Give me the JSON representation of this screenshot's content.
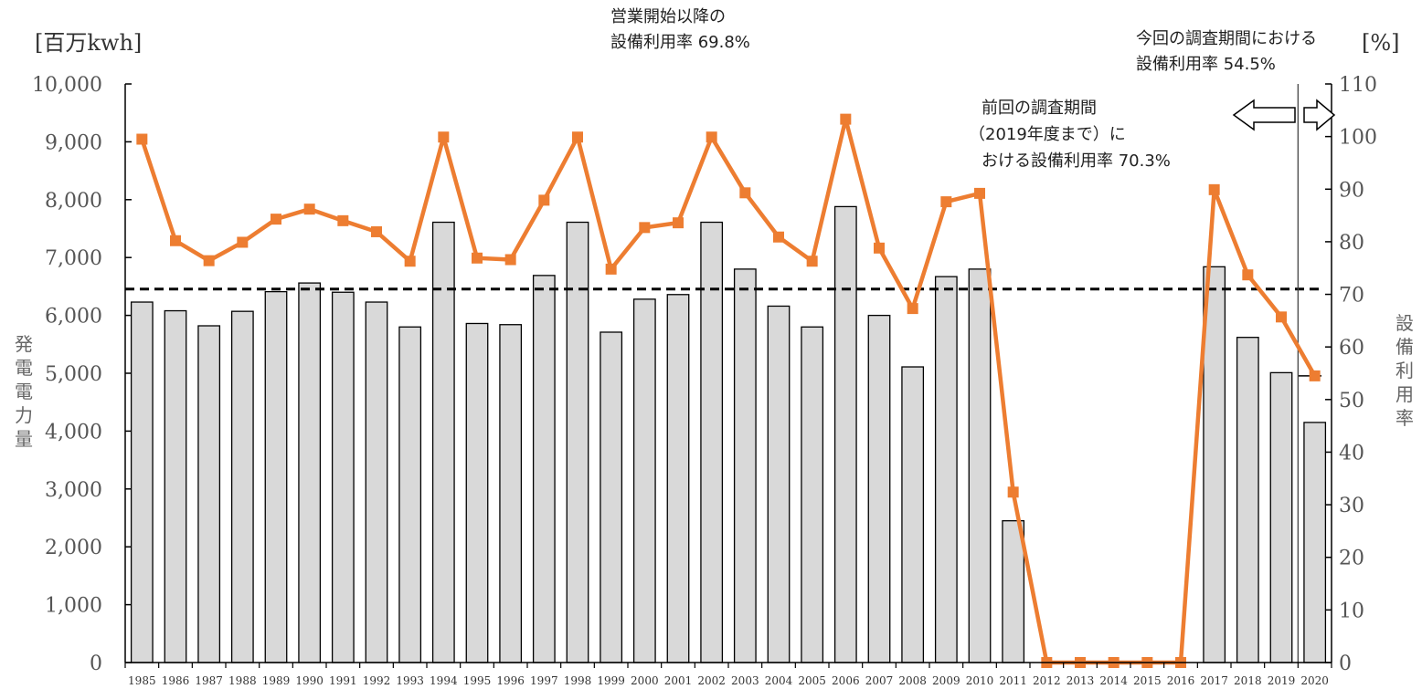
{
  "chart_data": {
    "type": "bar",
    "categories": [
      "1985",
      "1986",
      "1987",
      "1988",
      "1989",
      "1990",
      "1991",
      "1992",
      "1993",
      "1994",
      "1995",
      "1996",
      "1997",
      "1998",
      "1999",
      "2000",
      "2001",
      "2002",
      "2003",
      "2004",
      "2005",
      "2006",
      "2007",
      "2008",
      "2009",
      "2010",
      "2011",
      "2012",
      "2013",
      "2014",
      "2015",
      "2016",
      "2017",
      "2018",
      "2019",
      "2020"
    ],
    "series": [
      {
        "kind": "bar",
        "axis": "left",
        "color": "#d9d9d9",
        "values": [
          6230,
          6080,
          5820,
          6070,
          6410,
          6560,
          6400,
          6230,
          5800,
          7610,
          5860,
          5840,
          6690,
          7610,
          5710,
          6280,
          6360,
          7610,
          6800,
          6160,
          5800,
          7880,
          6000,
          5110,
          6670,
          6800,
          2450,
          0,
          0,
          0,
          0,
          0,
          6840,
          5620,
          5010,
          4150
        ]
      },
      {
        "kind": "line",
        "axis": "right",
        "color": "#ed7d31",
        "values": [
          99.5,
          80.2,
          76.4,
          79.9,
          84.3,
          86.2,
          84.0,
          81.9,
          76.3,
          99.9,
          76.9,
          76.6,
          87.9,
          99.9,
          74.8,
          82.7,
          83.6,
          99.9,
          89.3,
          80.9,
          76.3,
          103.3,
          78.8,
          67.3,
          87.6,
          89.2,
          32.4,
          0,
          0,
          0,
          0,
          0,
          89.9,
          73.7,
          65.7,
          54.5
        ]
      }
    ],
    "left_axis": {
      "label_unit": "[百万kwh]",
      "title": "発電電力量",
      "ylim": [
        0,
        10000
      ],
      "ticks": [
        "0",
        "1,000",
        "2,000",
        "3,000",
        "4,000",
        "5,000",
        "6,000",
        "7,000",
        "8,000",
        "9,000",
        "10,000"
      ]
    },
    "right_axis": {
      "label_unit": "[%]",
      "title": "設備利用率",
      "ylim": [
        0,
        110
      ],
      "ticks": [
        "0",
        "10",
        "20",
        "30",
        "40",
        "50",
        "60",
        "70",
        "80",
        "90",
        "100",
        "110"
      ]
    },
    "reference_lines": [
      {
        "style": "dashed",
        "axis": "right",
        "value": 71.0,
        "x_from": "1985",
        "x_to": "2020"
      },
      {
        "style": "solid",
        "axis": "right",
        "value": 54.5,
        "x_from": "2019",
        "x_to": "2020"
      }
    ],
    "annotations": {
      "top_center_line1": "営業開始以降の",
      "top_center_line2": "設備利用率 69.8%",
      "mid_line1": "前回の調査期間",
      "mid_line2": "（2019年度まで）に",
      "mid_line3": "おける設備利用率 70.3%",
      "top_right_line1": "今回の調査期間における",
      "top_right_line2": "設備利用率 54.5%"
    },
    "divider_between": [
      "2019",
      "2020"
    ],
    "grid": false,
    "legend": "none"
  }
}
